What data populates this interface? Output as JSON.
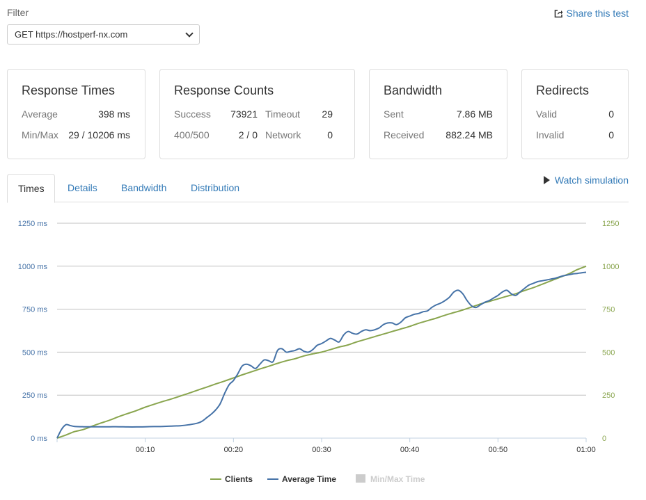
{
  "filter": {
    "label": "Filter",
    "selected": "GET https://hostperf-nx.com"
  },
  "share": {
    "label": "Share this test",
    "icon": "share-icon"
  },
  "cards": {
    "response_times": {
      "title": "Response Times",
      "average_label": "Average",
      "average_value": "398 ms",
      "minmax_label": "Min/Max",
      "minmax_value": "29 / 10206 ms"
    },
    "response_counts": {
      "title": "Response Counts",
      "success_label": "Success",
      "success_value": "73921",
      "timeout_label": "Timeout",
      "timeout_value": "29",
      "e400_label": "400/500",
      "e400_value": "2 / 0",
      "network_label": "Network",
      "network_value": "0"
    },
    "bandwidth": {
      "title": "Bandwidth",
      "sent_label": "Sent",
      "sent_value": "7.86 MB",
      "received_label": "Received",
      "received_value": "882.24 MB"
    },
    "redirects": {
      "title": "Redirects",
      "valid_label": "Valid",
      "valid_value": "0",
      "invalid_label": "Invalid",
      "invalid_value": "0"
    }
  },
  "tabs": [
    "Times",
    "Details",
    "Bandwidth",
    "Distribution"
  ],
  "active_tab": "Times",
  "watch": {
    "label": "Watch simulation",
    "icon": "play-icon"
  },
  "colors": {
    "clients": "#89a54e",
    "avg": "#4572a7",
    "minmax": "#cccccc",
    "link": "#337ab7"
  },
  "chart_data": {
    "type": "line",
    "x_ticks": [
      "00:10",
      "00:20",
      "00:30",
      "00:40",
      "00:50",
      "01:00"
    ],
    "x_tick_seconds": [
      10,
      20,
      30,
      40,
      50,
      60
    ],
    "xlim": [
      0,
      60
    ],
    "y_left_ticks": [
      "0 ms",
      "250 ms",
      "500 ms",
      "750 ms",
      "1000 ms",
      "1250 ms"
    ],
    "y_right_ticks": [
      "0",
      "250",
      "500",
      "750",
      "1000",
      "1250"
    ],
    "ylim": [
      0,
      1250
    ],
    "grid": true,
    "legend_position": "bottom",
    "series": [
      {
        "name": "Clients",
        "axis": "right",
        "x": [
          0,
          1,
          2,
          3,
          4,
          5,
          6,
          7,
          8,
          9,
          10,
          11,
          12,
          13,
          14,
          15,
          16,
          17,
          18,
          19,
          20,
          21,
          22,
          23,
          24,
          25,
          26,
          27,
          28,
          29,
          30,
          31,
          32,
          33,
          34,
          35,
          36,
          37,
          38,
          39,
          40,
          41,
          42,
          43,
          44,
          45,
          46,
          47,
          48,
          49,
          50,
          51,
          52,
          53,
          54,
          55,
          56,
          57,
          58,
          59,
          60
        ],
        "values": [
          0,
          18,
          38,
          50,
          70,
          88,
          105,
          125,
          143,
          160,
          180,
          197,
          213,
          228,
          245,
          262,
          280,
          297,
          315,
          332,
          350,
          368,
          385,
          402,
          418,
          435,
          450,
          462,
          478,
          490,
          500,
          515,
          530,
          542,
          560,
          575,
          590,
          605,
          620,
          635,
          650,
          668,
          683,
          698,
          715,
          730,
          745,
          762,
          780,
          795,
          810,
          825,
          840,
          858,
          875,
          895,
          915,
          935,
          955,
          980,
          1000
        ]
      },
      {
        "name": "Average Time",
        "axis": "left",
        "x": [
          0,
          0.5,
          1,
          1.5,
          2,
          3,
          4,
          5,
          6,
          7,
          8,
          9,
          10,
          11,
          12,
          13,
          14,
          15,
          16,
          16.5,
          17,
          17.5,
          18,
          18.5,
          19,
          19.5,
          20,
          20.5,
          21,
          21.5,
          22,
          22.5,
          23,
          23.5,
          24,
          24.5,
          25,
          25.5,
          26,
          26.5,
          27,
          27.5,
          28,
          28.5,
          29,
          29.5,
          30,
          30.5,
          31,
          31.5,
          32,
          32.5,
          33,
          33.5,
          34,
          34.5,
          35,
          35.5,
          36,
          36.5,
          37,
          37.5,
          38,
          38.5,
          39,
          39.5,
          40,
          40.5,
          41,
          41.5,
          42,
          42.5,
          43,
          43.5,
          44,
          44.5,
          45,
          45.5,
          46,
          46.5,
          47,
          47.5,
          48,
          48.5,
          49,
          49.5,
          50,
          50.5,
          51,
          51.5,
          52,
          52.5,
          53,
          53.5,
          54,
          54.5,
          55,
          55.5,
          56,
          56.5,
          57,
          57.5,
          58,
          58.5,
          59,
          59.5,
          60
        ],
        "values": [
          0,
          50,
          78,
          73,
          68,
          66,
          66,
          66,
          66,
          66,
          65,
          65,
          66,
          67,
          68,
          70,
          72,
          78,
          88,
          100,
          120,
          140,
          165,
          200,
          260,
          310,
          335,
          375,
          420,
          430,
          420,
          405,
          430,
          455,
          450,
          445,
          510,
          520,
          500,
          505,
          510,
          520,
          505,
          500,
          515,
          540,
          550,
          565,
          580,
          570,
          560,
          600,
          620,
          610,
          605,
          620,
          630,
          625,
          630,
          640,
          660,
          670,
          670,
          660,
          675,
          700,
          710,
          720,
          725,
          735,
          740,
          760,
          775,
          785,
          800,
          820,
          850,
          860,
          840,
          800,
          770,
          760,
          775,
          790,
          800,
          815,
          830,
          850,
          860,
          840,
          830,
          850,
          870,
          890,
          900,
          910,
          915,
          920,
          925,
          930,
          938,
          945,
          950,
          955,
          958,
          962,
          965
        ]
      },
      {
        "name": "Min/Max Time",
        "axis": "left",
        "hidden": true,
        "x": [],
        "values": []
      }
    ]
  }
}
